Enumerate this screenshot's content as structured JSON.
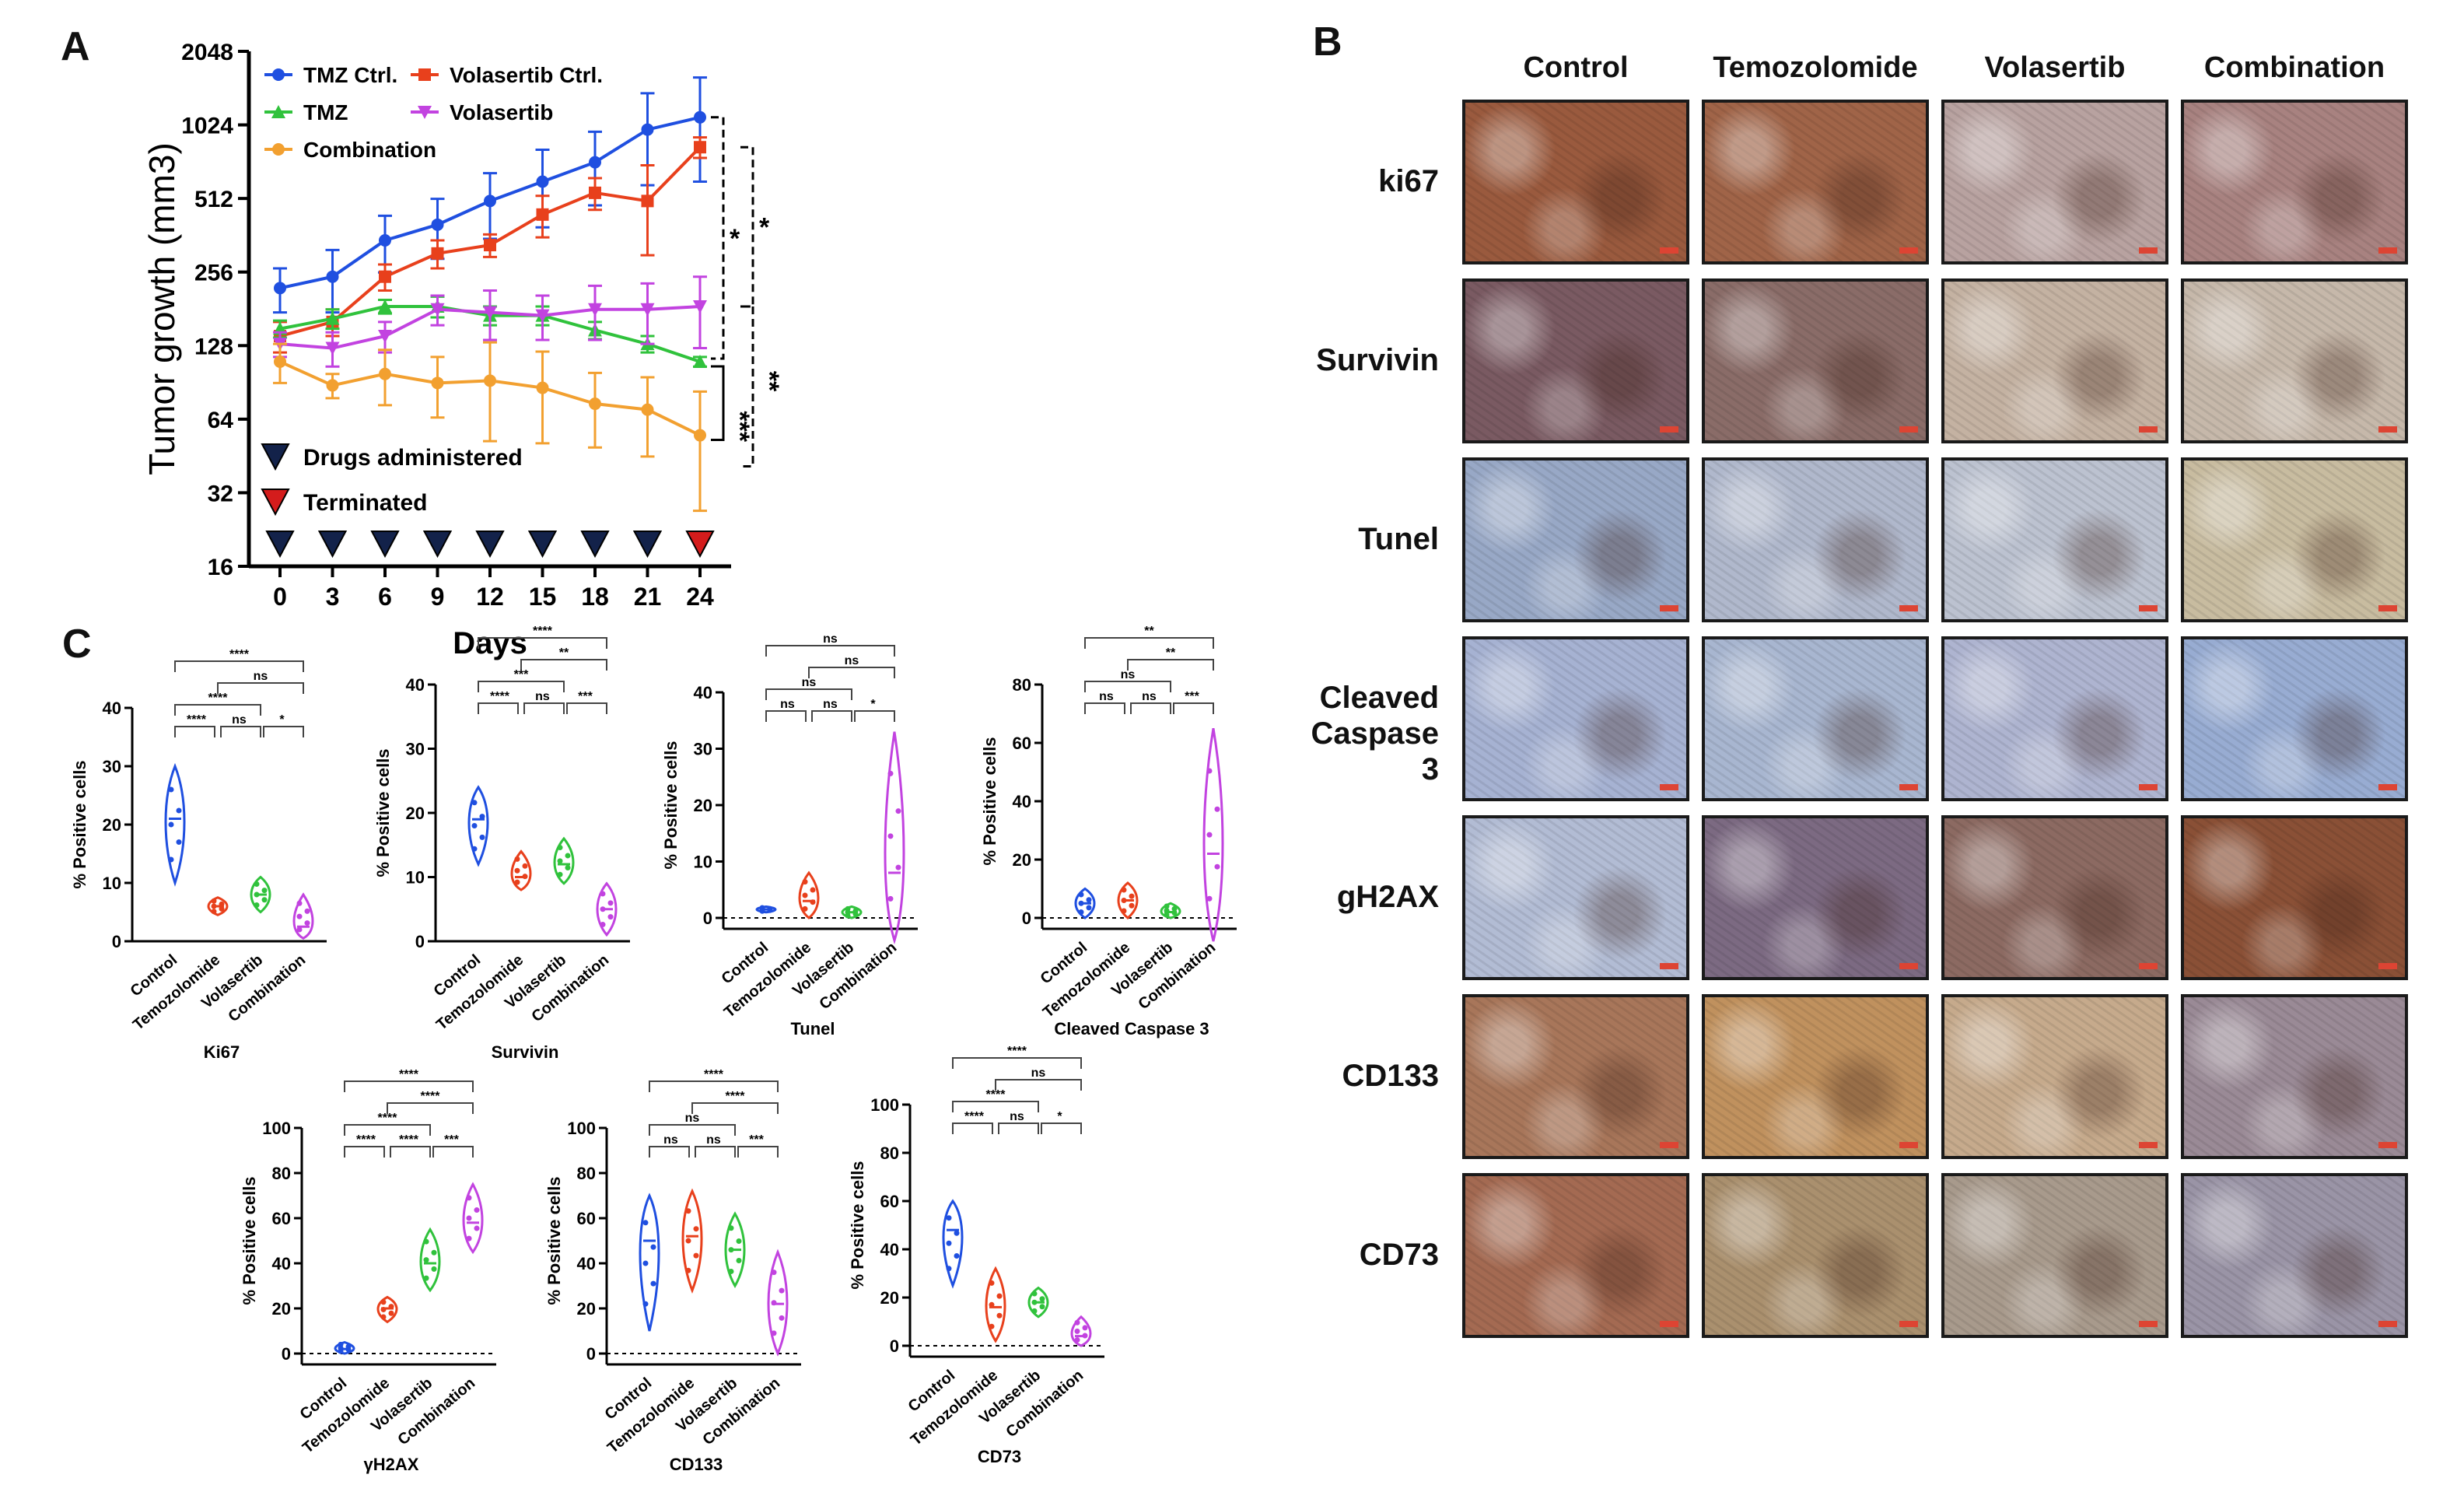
{
  "panels": {
    "a": "A",
    "b": "B",
    "c": "C"
  },
  "chart_data": [
    {
      "type": "line",
      "panel": "A",
      "xlabel": "Days",
      "ylabel": "Tumor growth (mm3)",
      "ylog2": true,
      "yticks": [
        16,
        32,
        64,
        128,
        256,
        512,
        1024,
        2048
      ],
      "ylim": [
        16,
        2048
      ],
      "x": [
        0,
        3,
        6,
        9,
        12,
        15,
        18,
        21,
        24
      ],
      "series": [
        {
          "name": "TMZ Ctrl.",
          "color": "#1f4fe0",
          "marker": "circle",
          "values": [
            220,
            245,
            345,
            400,
            500,
            600,
            720,
            980,
            1100
          ],
          "err": [
            45,
            70,
            90,
            110,
            150,
            210,
            240,
            400,
            500
          ]
        },
        {
          "name": "Volasertib Ctrl.",
          "color": "#e8401c",
          "marker": "square",
          "values": [
            140,
            160,
            245,
            305,
            330,
            440,
            540,
            500,
            830
          ],
          "err": [
            20,
            20,
            30,
            40,
            35,
            85,
            80,
            200,
            80
          ]
        },
        {
          "name": "TMZ",
          "color": "#30c23c",
          "marker": "triangle-up",
          "values": [
            150,
            165,
            185,
            185,
            170,
            170,
            148,
            130,
            110
          ],
          "err": [
            12,
            15,
            12,
            18,
            15,
            15,
            12,
            10,
            5
          ]
        },
        {
          "name": "Volasertib",
          "color": "#c243e0",
          "marker": "triangle-down",
          "values": [
            130,
            125,
            140,
            180,
            175,
            170,
            180,
            180,
            185
          ],
          "err": [
            15,
            20,
            20,
            25,
            40,
            35,
            45,
            50,
            60
          ]
        },
        {
          "name": "Combination",
          "color": "#f2a030",
          "marker": "circle",
          "values": [
            110,
            88,
            98,
            90,
            92,
            86,
            74,
            70,
            55
          ],
          "err": [
            20,
            10,
            25,
            25,
            40,
            35,
            25,
            25,
            28
          ]
        }
      ],
      "markers_legend": [
        {
          "name": "Drugs administered",
          "color": "#13224a"
        },
        {
          "name": "Terminated",
          "color": "#d41c1c"
        }
      ],
      "sig": [
        "*",
        "*",
        "***",
        "**"
      ]
    },
    {
      "type": "violin",
      "panel": "C",
      "ylabel": "% Positive cells",
      "groups": [
        "Control",
        "Temozolomide",
        "Volasertib",
        "Combination"
      ],
      "group_colors": [
        "#1f4fe0",
        "#e8401c",
        "#30c23c",
        "#c243e0"
      ],
      "plots": [
        {
          "title": "Ki67",
          "ylim": [
            0,
            40
          ],
          "yticks": [
            0,
            10,
            20,
            30,
            40
          ],
          "median": [
            21,
            6,
            8,
            2.5
          ],
          "min": [
            10,
            4.5,
            5,
            0.5
          ],
          "max": [
            30,
            7.5,
            11,
            8
          ],
          "sig": [
            {
              "a": 0,
              "b": 3,
              "label": "****"
            },
            {
              "a": 1,
              "b": 3,
              "label": "ns"
            },
            {
              "a": 0,
              "b": 2,
              "label": "****"
            },
            {
              "a": 0,
              "b": 1,
              "label": "****"
            },
            {
              "a": 1,
              "b": 2,
              "label": "ns"
            },
            {
              "a": 2,
              "b": 3,
              "label": "*"
            }
          ]
        },
        {
          "title": "Survivin",
          "ylim": [
            0,
            40
          ],
          "yticks": [
            0,
            10,
            20,
            30,
            40
          ],
          "median": [
            19,
            10,
            12,
            5
          ],
          "min": [
            12,
            8,
            9,
            1
          ],
          "max": [
            24,
            14,
            16,
            9
          ],
          "sig": [
            {
              "a": 0,
              "b": 3,
              "label": "****"
            },
            {
              "a": 1,
              "b": 3,
              "label": "**"
            },
            {
              "a": 0,
              "b": 2,
              "label": "***"
            },
            {
              "a": 0,
              "b": 1,
              "label": "****"
            },
            {
              "a": 1,
              "b": 2,
              "label": "ns"
            },
            {
              "a": 2,
              "b": 3,
              "label": "***"
            }
          ]
        },
        {
          "title": "Tunel",
          "ylim": [
            0,
            40
          ],
          "yticks": [
            0,
            10,
            20,
            30,
            40
          ],
          "baseline": true,
          "median": [
            1.5,
            3,
            1,
            8
          ],
          "min": [
            1,
            0,
            0,
            -4
          ],
          "max": [
            2,
            8,
            2,
            33
          ],
          "sig": [
            {
              "a": 0,
              "b": 3,
              "label": "ns"
            },
            {
              "a": 1,
              "b": 3,
              "label": "ns"
            },
            {
              "a": 0,
              "b": 2,
              "label": "ns"
            },
            {
              "a": 0,
              "b": 1,
              "label": "ns"
            },
            {
              "a": 1,
              "b": 2,
              "label": "ns"
            },
            {
              "a": 2,
              "b": 3,
              "label": "*"
            }
          ]
        },
        {
          "title": "Cleaved Caspase 3",
          "ylim": [
            0,
            80
          ],
          "yticks": [
            0,
            20,
            40,
            60,
            80
          ],
          "baseline": true,
          "median": [
            5,
            6,
            2,
            22
          ],
          "min": [
            0,
            0,
            0,
            -8
          ],
          "max": [
            10,
            12,
            5,
            65
          ],
          "sig": [
            {
              "a": 0,
              "b": 3,
              "label": "**"
            },
            {
              "a": 1,
              "b": 3,
              "label": "**"
            },
            {
              "a": 0,
              "b": 2,
              "label": "ns"
            },
            {
              "a": 0,
              "b": 1,
              "label": "ns"
            },
            {
              "a": 1,
              "b": 2,
              "label": "ns"
            },
            {
              "a": 2,
              "b": 3,
              "label": "***"
            }
          ]
        },
        {
          "title": "γH2AX",
          "ylim": [
            0,
            100
          ],
          "yticks": [
            0,
            20,
            40,
            60,
            80,
            100
          ],
          "baseline": true,
          "median": [
            2,
            20,
            40,
            58
          ],
          "min": [
            0,
            14,
            28,
            45
          ],
          "max": [
            5,
            25,
            55,
            75
          ],
          "sig": [
            {
              "a": 0,
              "b": 3,
              "label": "****"
            },
            {
              "a": 1,
              "b": 3,
              "label": "****"
            },
            {
              "a": 0,
              "b": 2,
              "label": "****"
            },
            {
              "a": 0,
              "b": 1,
              "label": "****"
            },
            {
              "a": 1,
              "b": 2,
              "label": "****"
            },
            {
              "a": 2,
              "b": 3,
              "label": "***"
            }
          ]
        },
        {
          "title": "CD133",
          "ylim": [
            0,
            100
          ],
          "yticks": [
            0,
            20,
            40,
            60,
            80,
            100
          ],
          "baseline": true,
          "median": [
            50,
            52,
            46,
            22
          ],
          "min": [
            10,
            28,
            30,
            0
          ],
          "max": [
            70,
            72,
            62,
            45
          ],
          "sig": [
            {
              "a": 0,
              "b": 3,
              "label": "****"
            },
            {
              "a": 1,
              "b": 3,
              "label": "****"
            },
            {
              "a": 0,
              "b": 2,
              "label": "ns"
            },
            {
              "a": 0,
              "b": 1,
              "label": "ns"
            },
            {
              "a": 1,
              "b": 2,
              "label": "ns"
            },
            {
              "a": 2,
              "b": 3,
              "label": "***"
            }
          ]
        },
        {
          "title": "CD73",
          "ylim": [
            0,
            100
          ],
          "yticks": [
            0,
            20,
            40,
            60,
            80,
            100
          ],
          "baseline": true,
          "median": [
            48,
            16,
            18,
            4
          ],
          "min": [
            25,
            2,
            12,
            0
          ],
          "max": [
            60,
            32,
            24,
            12
          ],
          "sig": [
            {
              "a": 0,
              "b": 3,
              "label": "****"
            },
            {
              "a": 1,
              "b": 3,
              "label": "ns"
            },
            {
              "a": 0,
              "b": 2,
              "label": "****"
            },
            {
              "a": 0,
              "b": 1,
              "label": "****"
            },
            {
              "a": 1,
              "b": 2,
              "label": "ns"
            },
            {
              "a": 2,
              "b": 3,
              "label": "*"
            }
          ]
        }
      ]
    }
  ],
  "ihc": {
    "columns": [
      "Control",
      "Temozolomide",
      "Volasertib",
      "Combination"
    ],
    "rows": [
      "ki67",
      "Survivin",
      "Tunel",
      "Cleaved Caspase 3",
      "gH2AX",
      "CD133",
      "CD73"
    ],
    "tile_colors": [
      [
        "#9a5a3e",
        "#a06448",
        "#b8a2a0",
        "#a88280"
      ],
      [
        "#7a5a62",
        "#8a6c68",
        "#c4b2a2",
        "#c6b8aa"
      ],
      [
        "#98a8c6",
        "#b0b8cc",
        "#bcc2d0",
        "#c8bca0"
      ],
      [
        "#a6b2d2",
        "#a8b6d0",
        "#aeb4d0",
        "#98acd2"
      ],
      [
        "#b2bcd4",
        "#7c6a82",
        "#8c6a62",
        "#8a5036"
      ],
      [
        "#a8765a",
        "#c0915e",
        "#c6aa8c",
        "#9a8a96"
      ],
      [
        "#a46a52",
        "#aa906e",
        "#a89a8c",
        "#9a94a6"
      ]
    ]
  }
}
